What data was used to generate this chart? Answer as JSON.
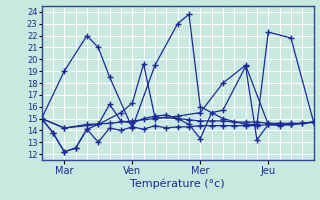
{
  "xlabel": "Température (°c)",
  "background_color": "#c8e8e0",
  "plot_bg_color": "#c8e8e0",
  "line_color": "#1a2b99",
  "grid_color": "#a0c8c0",
  "tick_labels": [
    "Mar",
    "Ven",
    "Mer",
    "Jeu"
  ],
  "ylim": [
    11.5,
    24.5
  ],
  "yticks": [
    12,
    13,
    14,
    15,
    16,
    17,
    18,
    19,
    20,
    21,
    22,
    23,
    24
  ],
  "xtick_pos": [
    2,
    8,
    14,
    20
  ],
  "xlim": [
    0,
    24
  ],
  "series": [
    {
      "x": [
        0,
        1,
        2,
        3,
        4,
        5,
        6,
        7,
        8,
        9,
        10,
        11,
        12,
        13,
        14,
        15,
        16,
        17,
        18,
        19,
        20,
        21,
        22,
        23,
        24
      ],
      "y": [
        15.0,
        13.8,
        12.2,
        12.5,
        14.1,
        13.0,
        14.2,
        14.0,
        14.3,
        14.1,
        14.4,
        14.2,
        14.3,
        14.3,
        14.4,
        14.4,
        14.4,
        14.4,
        14.4,
        14.4,
        14.5,
        14.5,
        14.5,
        14.6,
        14.7
      ]
    },
    {
      "x": [
        0,
        1,
        2,
        3,
        4,
        5,
        6,
        7,
        8,
        9,
        10,
        11,
        12,
        13,
        14,
        15,
        16,
        17,
        18,
        19,
        20,
        21,
        22,
        23,
        24
      ],
      "y": [
        15.0,
        13.8,
        12.2,
        12.5,
        14.1,
        14.5,
        16.2,
        14.8,
        14.6,
        15.0,
        15.2,
        15.3,
        15.0,
        14.9,
        14.8,
        14.8,
        14.8,
        14.7,
        14.7,
        14.7,
        14.6,
        14.6,
        14.6,
        14.6,
        14.7
      ]
    },
    {
      "x": [
        0,
        2,
        4,
        5,
        6,
        8,
        10,
        12,
        13,
        14,
        16,
        18,
        19,
        20,
        22,
        24
      ],
      "y": [
        15.0,
        19.0,
        22.0,
        21.0,
        18.5,
        14.2,
        19.5,
        23.0,
        23.8,
        16.0,
        15.0,
        14.5,
        14.5,
        22.3,
        21.8,
        14.7
      ]
    },
    {
      "x": [
        0,
        2,
        5,
        7,
        8,
        9,
        10,
        12,
        13,
        14,
        15,
        16,
        18,
        19,
        20,
        21,
        22,
        24
      ],
      "y": [
        15.0,
        14.2,
        14.5,
        15.5,
        16.3,
        19.6,
        15.1,
        15.0,
        14.5,
        13.3,
        15.5,
        15.7,
        19.4,
        13.2,
        14.5,
        14.4,
        14.5,
        14.7
      ]
    },
    {
      "x": [
        0,
        2,
        4,
        6,
        8,
        10,
        12,
        14,
        16,
        18,
        20,
        22,
        24
      ],
      "y": [
        15.0,
        14.2,
        14.5,
        14.6,
        14.8,
        15.0,
        15.2,
        15.5,
        18.0,
        19.5,
        14.5,
        14.5,
        14.7
      ]
    }
  ]
}
